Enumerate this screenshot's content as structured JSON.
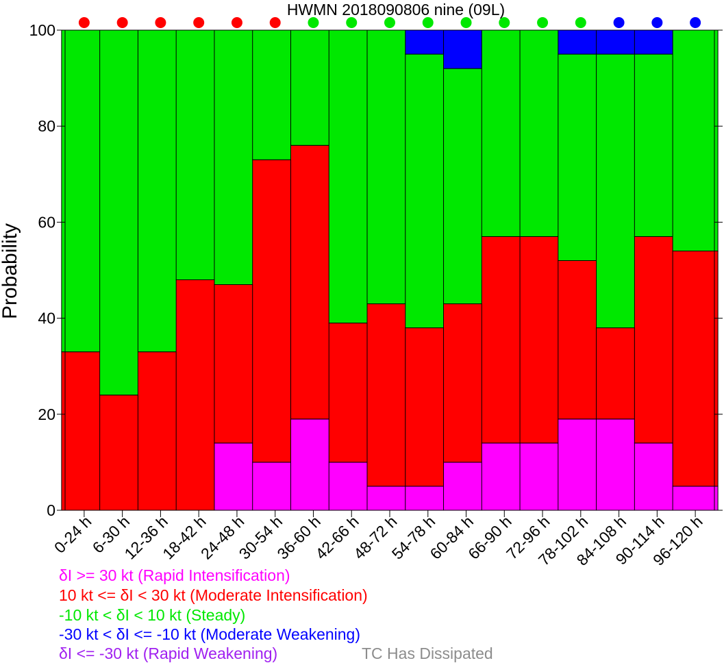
{
  "chart_data": {
    "type": "bar",
    "stacked": true,
    "title": "HWMN 2018090806 nine (09L)",
    "xlabel": "",
    "ylabel": "Probability",
    "ylim": [
      0,
      100
    ],
    "yticks": [
      0,
      20,
      40,
      60,
      80,
      100
    ],
    "categories": [
      "0-24 h",
      "6-30 h",
      "12-36 h",
      "18-42 h",
      "24-48 h",
      "30-54 h",
      "36-60 h",
      "42-66 h",
      "48-72 h",
      "54-78 h",
      "60-84 h",
      "66-90 h",
      "72-96 h",
      "78-102 h",
      "84-108 h",
      "90-114 h",
      "96-120 h"
    ],
    "series": [
      {
        "name": "δI >= 30 kt (Rapid Intensification)",
        "color": "#ff00ff",
        "values": [
          0,
          0,
          0,
          0,
          14,
          10,
          19,
          10,
          5,
          5,
          10,
          14,
          14,
          19,
          19,
          14,
          5
        ]
      },
      {
        "name": "10 kt <= δI < 30 kt (Moderate Intensification)",
        "color": "#ff0000",
        "values": [
          33,
          24,
          33,
          48,
          33,
          63,
          57,
          29,
          38,
          33,
          33,
          43,
          43,
          33,
          19,
          43,
          49
        ]
      },
      {
        "name": "-10 kt < δI < 10 kt (Steady)",
        "color": "#00e800",
        "values": [
          67,
          76,
          67,
          52,
          53,
          27,
          24,
          61,
          57,
          57,
          49,
          43,
          43,
          43,
          57,
          38,
          46
        ]
      },
      {
        "name": "-30 kt < δI <= -10 kt (Moderate Weakening)",
        "color": "#0000ff",
        "values": [
          0,
          0,
          0,
          0,
          0,
          0,
          0,
          0,
          0,
          5,
          8,
          0,
          0,
          5,
          5,
          5,
          0
        ]
      },
      {
        "name": "δI <= -30 kt (Rapid Weakening)",
        "color": "#a020f0",
        "values": [
          0,
          0,
          0,
          0,
          0,
          0,
          0,
          0,
          0,
          0,
          0,
          0,
          0,
          0,
          0,
          0,
          0
        ]
      }
    ],
    "category_indicator_colors": [
      "#ff0000",
      "#ff0000",
      "#ff0000",
      "#ff0000",
      "#ff0000",
      "#ff0000",
      "#00e800",
      "#00e800",
      "#00e800",
      "#00e800",
      "#00e800",
      "#00e800",
      "#00e800",
      "#00e800",
      "#0000ff",
      "#0000ff",
      "#0000ff"
    ],
    "extra_legend": {
      "text": "TC Has Dissipated",
      "color": "#8c8c8c"
    },
    "grid": false,
    "legend_placement": "bottom-left"
  }
}
